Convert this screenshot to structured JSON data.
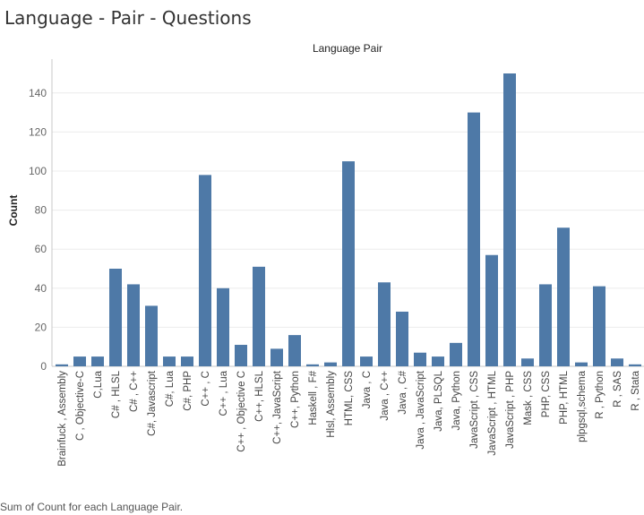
{
  "sheet": {
    "title": "Language - Pair - Questions",
    "caption": "Sum of Count for each Language Pair."
  },
  "colors": {
    "bar": "#4e79a7",
    "grid": "#ececec",
    "axis": "#c8c8c8"
  },
  "chart_data": {
    "type": "bar",
    "title": "Language Pair",
    "xlabel": "",
    "ylabel": "Count",
    "ylim": [
      0,
      150
    ],
    "yticks": [
      0,
      20,
      40,
      60,
      80,
      100,
      120,
      140
    ],
    "grid": true,
    "categories": [
      "Brainfuck , Assembly",
      "C , Objective-C",
      "C,Lua",
      "C# , HLSL",
      "C# , C++",
      "C#, Javascript",
      "C#, Lua",
      "C#, PHP",
      "C++ , C",
      "C++ , Lua",
      "C++ , Objective C",
      "C++, HLSL",
      "C++, JavaScript",
      "C++, Python",
      "Haskell , F#",
      "Hlsl, Assembly",
      "HTML, CSS",
      "Java , C",
      "Java , C++",
      "Java , C#",
      "Java , JavaScript",
      "Java, PLSQL",
      "Java, Python",
      "JavaScript , CSS",
      "JavaScript , HTML",
      "JavaScript , PHP",
      "Mask , CSS",
      "PHP, CSS",
      "PHP, HTML",
      "plpgsql,schema",
      "R , Python",
      "R , SAS",
      "R , Stata"
    ],
    "values": [
      1,
      5,
      5,
      50,
      42,
      31,
      5,
      5,
      98,
      40,
      11,
      51,
      9,
      16,
      1,
      2,
      105,
      5,
      43,
      28,
      7,
      5,
      12,
      130,
      57,
      150,
      4,
      42,
      71,
      2,
      41,
      4,
      1
    ]
  }
}
